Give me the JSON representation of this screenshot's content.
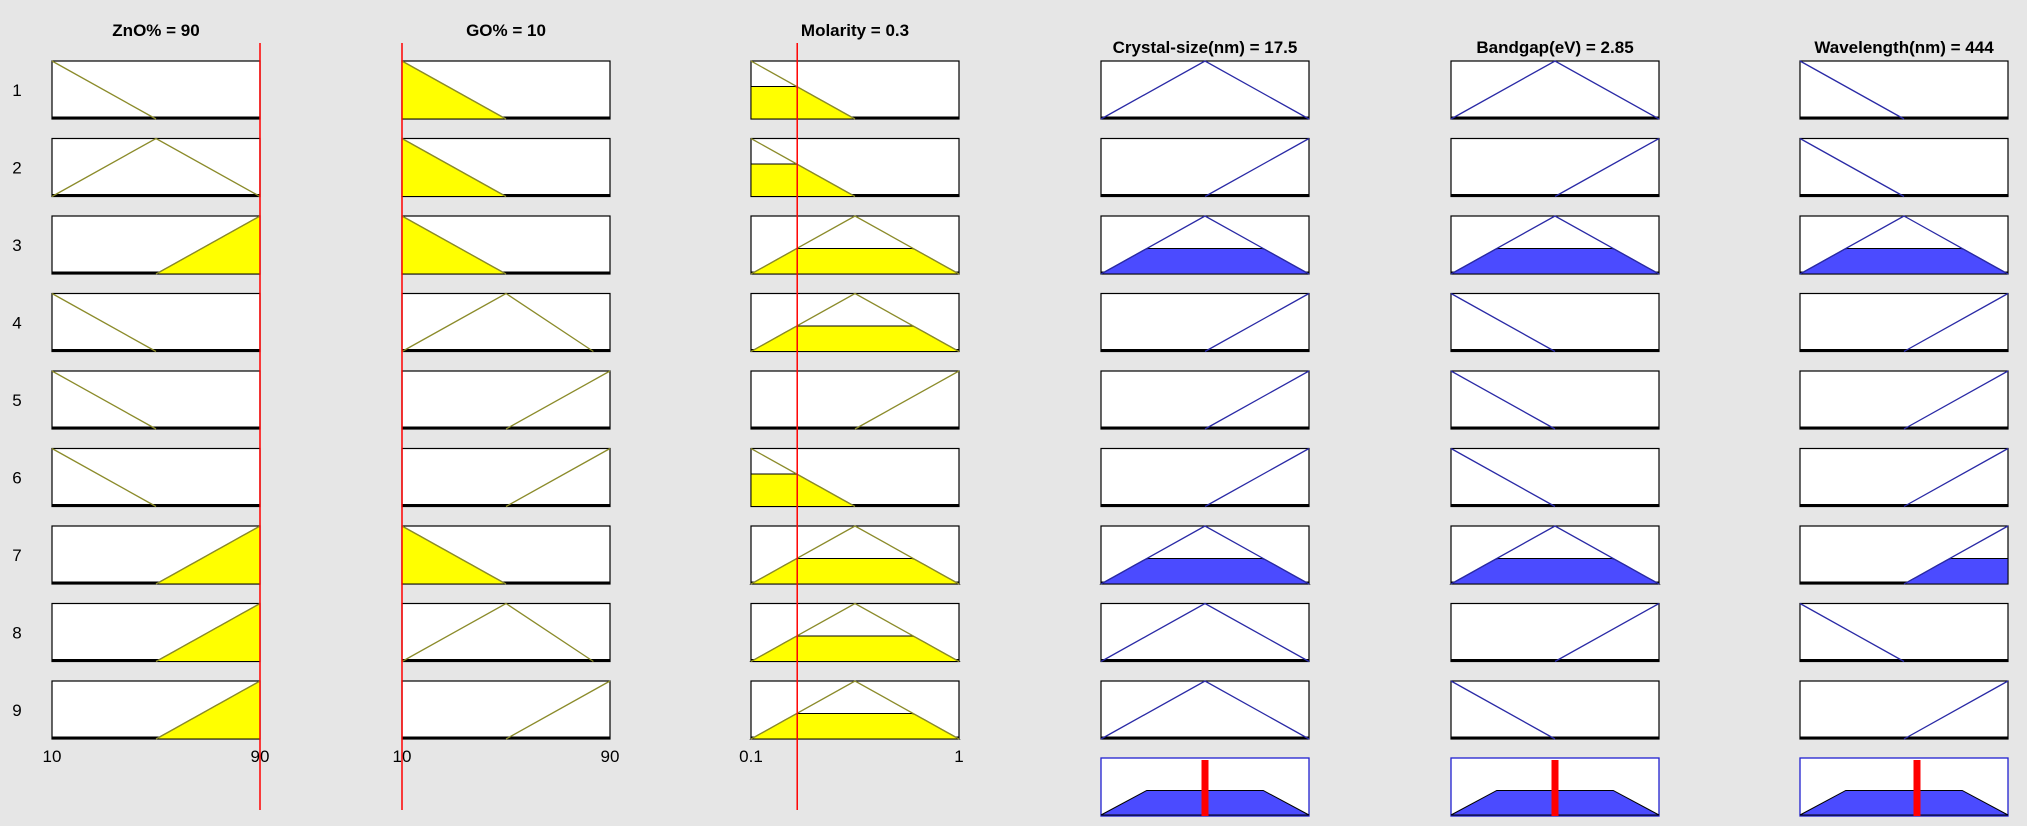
{
  "colors": {
    "background": "#e6e6e6",
    "input_line": "#8b8b2a",
    "input_fill": "#ffff00",
    "output_line": "#2a2aa6",
    "output_fill": "#4b4bff",
    "indicator": "#ff0000",
    "axis": "#000000"
  },
  "inputs": [
    {
      "title": "ZnO% = 90",
      "range": [
        10,
        90
      ],
      "value": 90,
      "ticks": [
        "10",
        "90"
      ]
    },
    {
      "title": "GO% = 10",
      "range": [
        10,
        90
      ],
      "value": 10,
      "ticks": [
        "10",
        "90"
      ]
    },
    {
      "title": "Molarity = 0.3",
      "range": [
        0.1,
        1
      ],
      "value": 0.3,
      "ticks": [
        "0.1",
        "1"
      ]
    }
  ],
  "outputs": [
    {
      "title": "Crystal-size(nm) = 17.5",
      "result": 0.5
    },
    {
      "title": "Bandgap(eV) = 2.85",
      "result": 0.5
    },
    {
      "title": "Wavelength(nm) = 444",
      "result": 0.5625
    }
  ],
  "rules": [
    {
      "number": "1",
      "inputs": [
        {
          "mf": "low",
          "degree": 0
        },
        {
          "mf": "low",
          "degree": 1
        },
        {
          "mf": "low",
          "degree": 0.56
        }
      ],
      "outputs": [
        "mid",
        "mid",
        "low"
      ],
      "firing": 0
    },
    {
      "number": "2",
      "inputs": [
        {
          "mf": "mid",
          "degree": 0
        },
        {
          "mf": "low",
          "degree": 1
        },
        {
          "mf": "low",
          "degree": 0.56
        }
      ],
      "outputs": [
        "high",
        "high",
        "low"
      ],
      "firing": 0
    },
    {
      "number": "3",
      "inputs": [
        {
          "mf": "high",
          "degree": 1
        },
        {
          "mf": "low",
          "degree": 1
        },
        {
          "mf": "mid",
          "degree": 0.44
        }
      ],
      "outputs": [
        "mid",
        "mid",
        "mid"
      ],
      "firing": 0.44
    },
    {
      "number": "4",
      "inputs": [
        {
          "mf": "low",
          "degree": 0
        },
        {
          "mf": "mid",
          "degree": 0
        },
        {
          "mf": "mid",
          "degree": 0.44
        }
      ],
      "outputs": [
        "high",
        "low",
        "high"
      ],
      "firing": 0
    },
    {
      "number": "5",
      "inputs": [
        {
          "mf": "low",
          "degree": 0
        },
        {
          "mf": "high",
          "degree": 0
        },
        {
          "mf": "high",
          "degree": 0
        }
      ],
      "outputs": [
        "high",
        "low",
        "high"
      ],
      "firing": 0
    },
    {
      "number": "6",
      "inputs": [
        {
          "mf": "low",
          "degree": 0
        },
        {
          "mf": "high",
          "degree": 0
        },
        {
          "mf": "low",
          "degree": 0.56
        }
      ],
      "outputs": [
        "high",
        "low",
        "high"
      ],
      "firing": 0
    },
    {
      "number": "7",
      "inputs": [
        {
          "mf": "high",
          "degree": 1
        },
        {
          "mf": "low",
          "degree": 1
        },
        {
          "mf": "mid",
          "degree": 0.44
        }
      ],
      "outputs": [
        "mid",
        "mid",
        "high"
      ],
      "firing": 0.44
    },
    {
      "number": "8",
      "inputs": [
        {
          "mf": "high",
          "degree": 1
        },
        {
          "mf": "mid",
          "degree": 0
        },
        {
          "mf": "mid",
          "degree": 0.44
        }
      ],
      "outputs": [
        "mid",
        "high",
        "low"
      ],
      "firing": 0
    },
    {
      "number": "9",
      "inputs": [
        {
          "mf": "high",
          "degree": 1
        },
        {
          "mf": "high",
          "degree": 0
        },
        {
          "mf": "mid",
          "degree": 0.44
        }
      ],
      "outputs": [
        "mid",
        "low",
        "high"
      ],
      "firing": 0
    }
  ],
  "aggregate": {
    "level": 0.44
  }
}
